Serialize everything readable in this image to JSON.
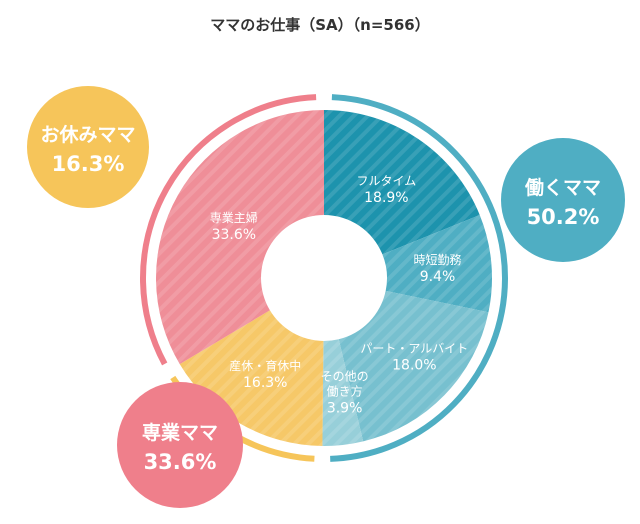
{
  "chart_data": {
    "type": "pie",
    "title": "ママのお仕事（SA）（n=566）",
    "slices": [
      {
        "label": "フルタイム",
        "value": 18.9,
        "value_text": "18.9%",
        "color": "#1d93ad"
      },
      {
        "label": "時短勤務",
        "value": 9.4,
        "value_text": "9.4%",
        "color": "#4faec3"
      },
      {
        "label": "パート・アルバイト",
        "value": 18.0,
        "value_text": "18.0%",
        "color": "#77c0cf"
      },
      {
        "label": "その他の働き方",
        "label_lines": [
          "その他の",
          "働き方"
        ],
        "value": 3.9,
        "value_text": "3.9%",
        "color": "#97cfd9"
      },
      {
        "label": "産休・育休中",
        "value": 16.3,
        "value_text": "16.3%",
        "color": "#f6c868"
      },
      {
        "label": "専業主婦",
        "value": 33.6,
        "value_text": "33.6%",
        "color": "#ef8e98"
      }
    ],
    "groups": [
      {
        "label": "働くママ",
        "value": 50.2,
        "value_text": "50.2%",
        "color": "#4faec3",
        "slices": [
          0,
          1,
          2,
          3
        ]
      },
      {
        "label": "お休みママ",
        "value": 16.3,
        "value_text": "16.3%",
        "color": "#f6c55a",
        "slices": [
          4
        ]
      },
      {
        "label": "専業ママ",
        "value": 33.6,
        "value_text": "33.6%",
        "color": "#ef7f8b",
        "slices": [
          5
        ]
      }
    ]
  }
}
